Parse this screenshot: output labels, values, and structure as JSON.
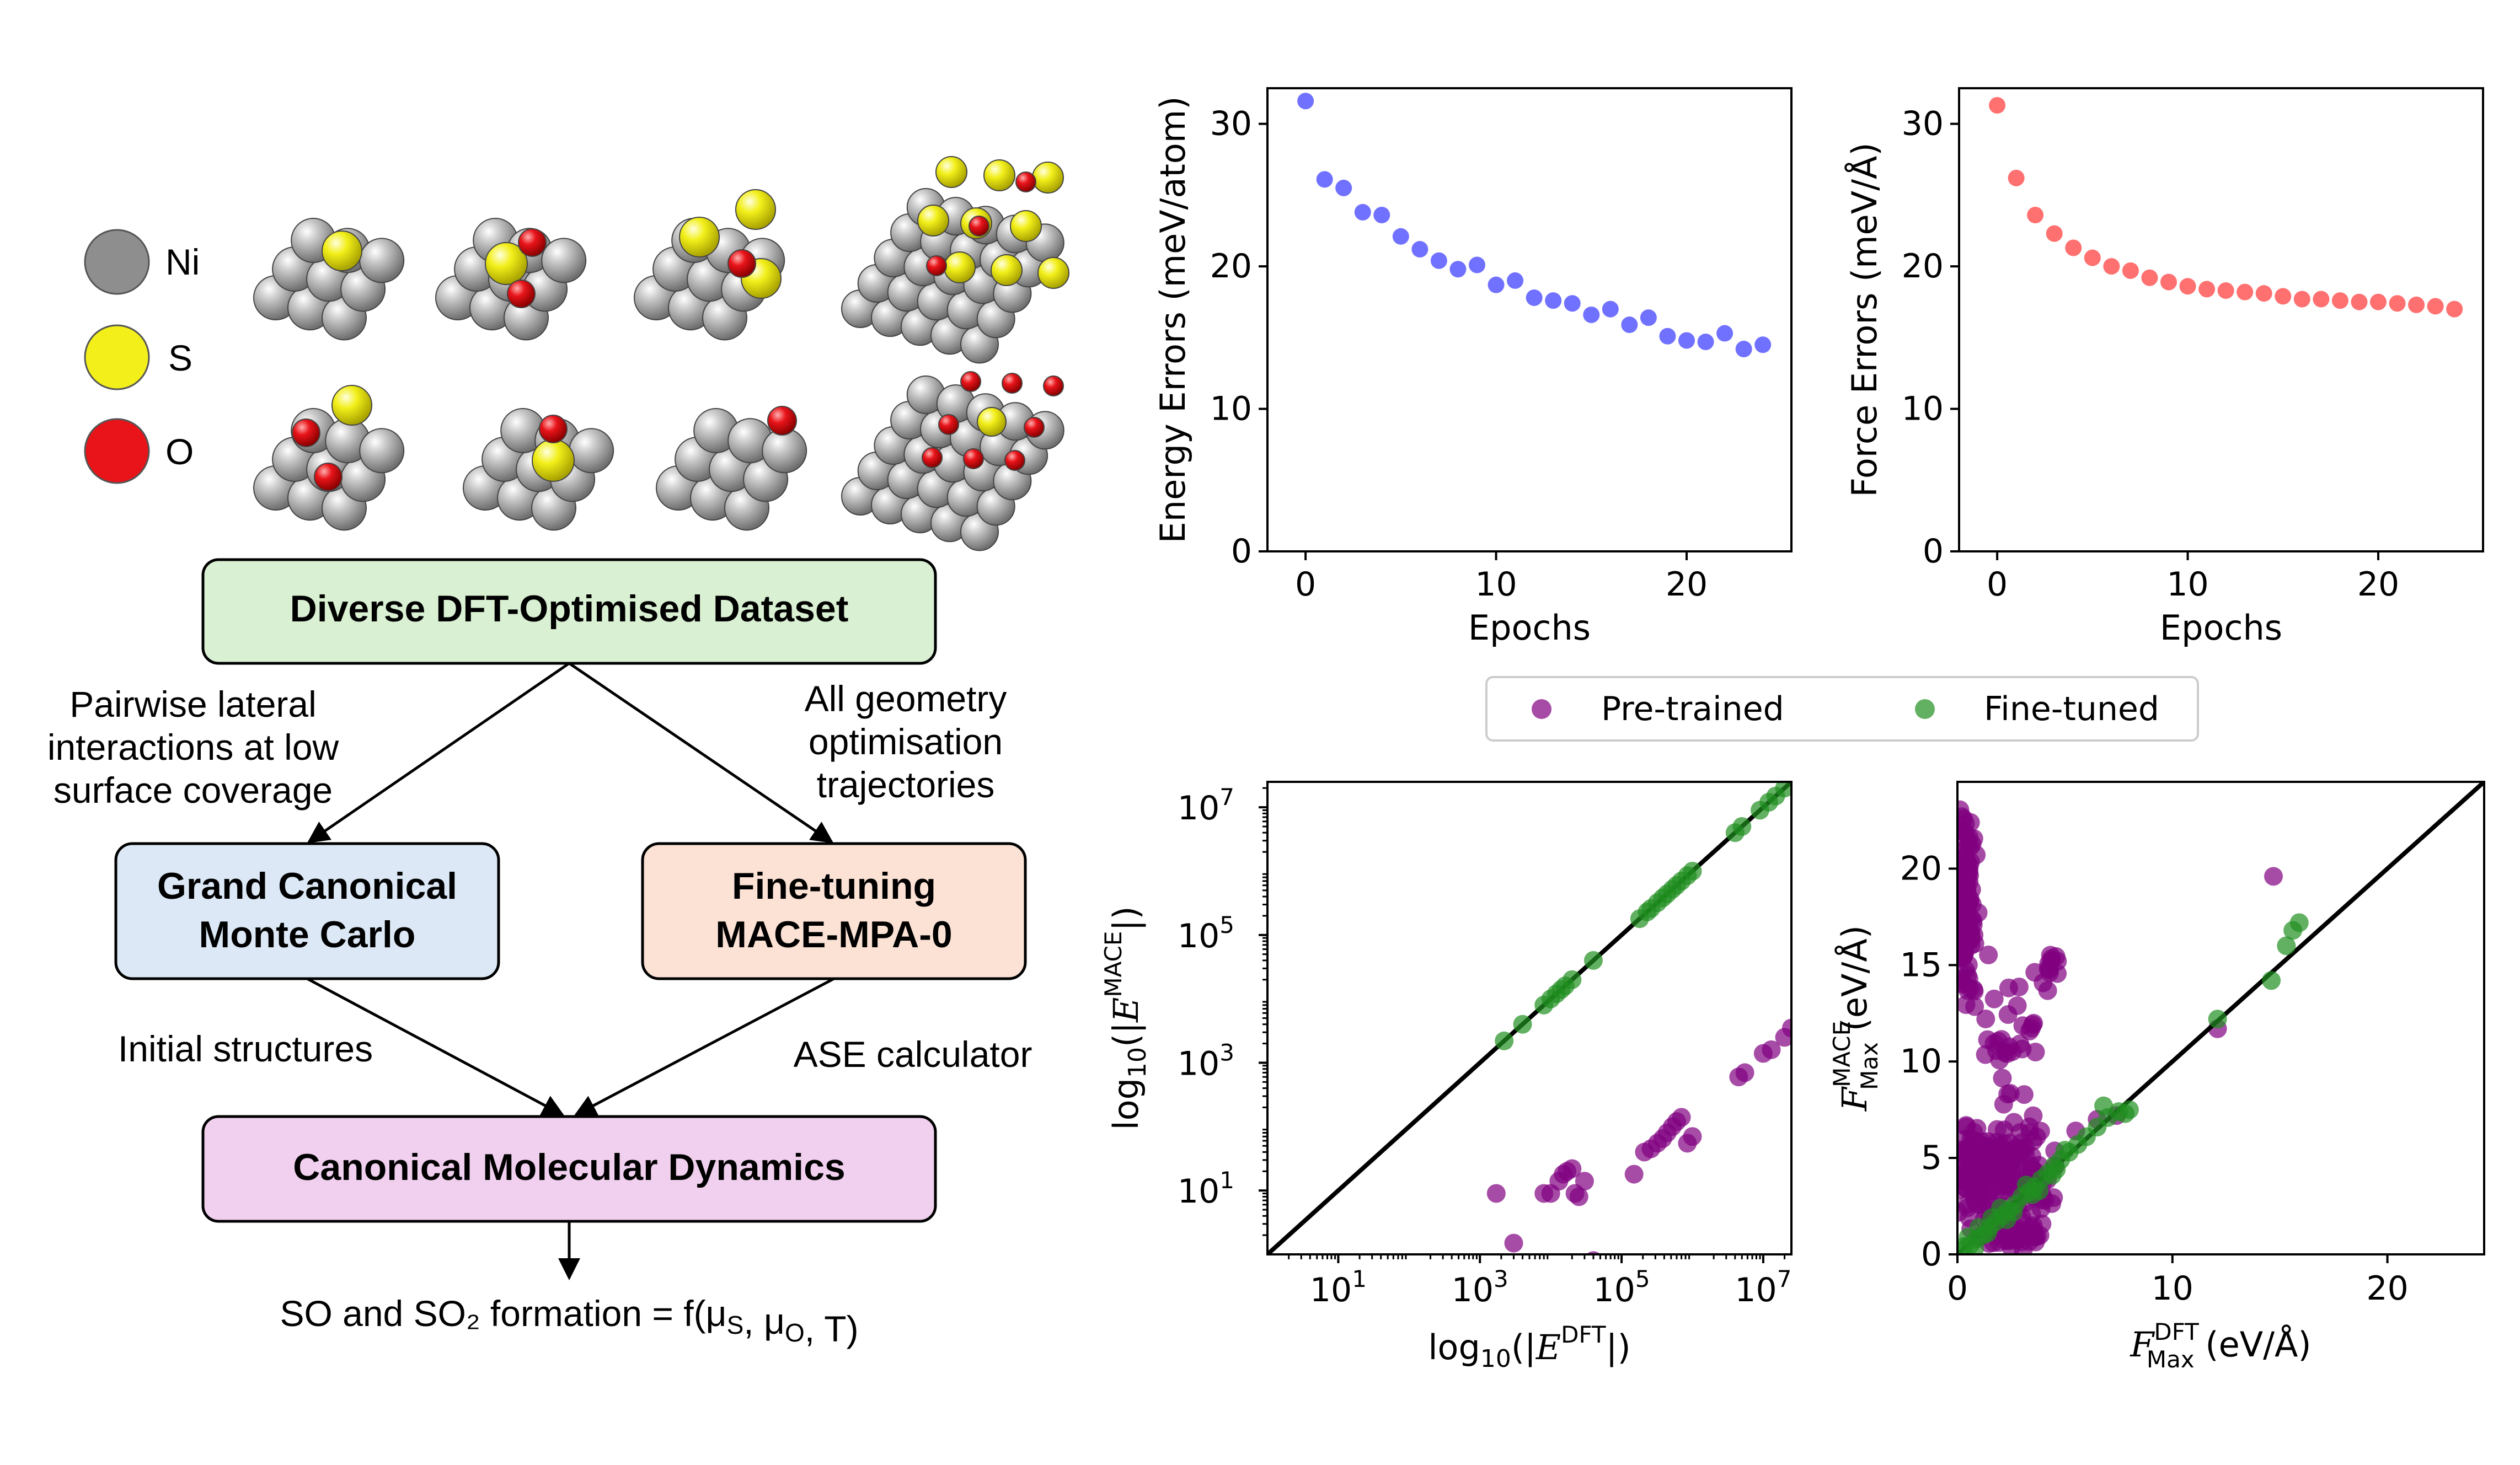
{
  "legend_atoms": [
    {
      "label": "Ni",
      "color": "#8e8e8e"
    },
    {
      "label": "S",
      "color": "#f2ef1a"
    },
    {
      "label": "O",
      "color": "#e8141a"
    }
  ],
  "flow": {
    "dataset_box": "Diverse DFT-Optimised Dataset",
    "gcmc_box_line1": "Grand Canonical",
    "gcmc_box_line2": "Monte Carlo",
    "finetune_box_line1": "Fine-tuning",
    "finetune_box_line2": "MACE-MPA-0",
    "md_box": "Canonical Molecular Dynamics",
    "left_branch_line1": "Pairwise lateral",
    "left_branch_line2": "interactions at low",
    "left_branch_line3": "surface coverage",
    "right_branch_line1": "All geometry",
    "right_branch_line2": "optimisation",
    "right_branch_line3": "trajectories",
    "initial_label": "Initial structures",
    "ase_label": "ASE calculator",
    "formation_text": "SO and SO₂ formation = f(μS, μO, T)"
  },
  "colors": {
    "energy": "#4d4dff",
    "force": "#ff4c4c",
    "pretrained": "#800080",
    "finetuned": "#1f8f1f",
    "box_dataset": "#d9f0d3",
    "box_gcmc": "#dce8f5",
    "box_finetune": "#fbe2d5",
    "box_md": "#f0d0ee"
  },
  "chart_data": [
    {
      "type": "scatter",
      "xlabel": "Epochs",
      "ylabel": "Energy Errors (meV/atom)",
      "xlim": [
        -2,
        25.5
      ],
      "ylim": [
        0,
        32.5
      ],
      "xticks": [
        0,
        10,
        20
      ],
      "yticks": [
        0,
        10,
        20,
        30
      ],
      "x": [
        0,
        1,
        2,
        3,
        4,
        5,
        6,
        7,
        8,
        9,
        10,
        11,
        12,
        13,
        14,
        15,
        16,
        17,
        18,
        19,
        20,
        21,
        22,
        23,
        24
      ],
      "y": [
        31.6,
        26.1,
        25.5,
        23.8,
        23.6,
        22.1,
        21.2,
        20.4,
        19.8,
        20.1,
        18.7,
        19.0,
        17.8,
        17.6,
        17.4,
        16.6,
        17.0,
        15.9,
        16.4,
        15.1,
        14.8,
        14.7,
        15.3,
        14.2,
        14.5
      ]
    },
    {
      "type": "scatter",
      "xlabel": "Epochs",
      "ylabel": "Force Errors (meV/Å)",
      "xlim": [
        -2,
        25.5
      ],
      "ylim": [
        0,
        32.5
      ],
      "xticks": [
        0,
        10,
        20
      ],
      "yticks": [
        0,
        10,
        20,
        30
      ],
      "x": [
        0,
        1,
        2,
        3,
        4,
        5,
        6,
        7,
        8,
        9,
        10,
        11,
        12,
        13,
        14,
        15,
        16,
        17,
        18,
        19,
        20,
        21,
        22,
        23,
        24
      ],
      "y": [
        31.3,
        26.2,
        23.6,
        22.3,
        21.3,
        20.6,
        20.0,
        19.7,
        19.2,
        18.9,
        18.6,
        18.4,
        18.3,
        18.2,
        18.1,
        17.9,
        17.7,
        17.7,
        17.6,
        17.5,
        17.5,
        17.4,
        17.3,
        17.2,
        17.0
      ]
    },
    {
      "type": "scatter",
      "legend": [
        "Pre-trained",
        "Fine-tuned"
      ],
      "legend_position": "top-center",
      "xscale": "log",
      "yscale": "log",
      "xlabel": "log₁₀(|E^DFT|)",
      "ylabel": "log₁₀(|E^MACE|)",
      "xlim": [
        1,
        25000000
      ],
      "ylim": [
        1,
        25000000
      ],
      "xticks": [
        10,
        1000,
        100000,
        10000000
      ],
      "yticks": [
        10,
        1000,
        100000,
        10000000
      ],
      "pretrained": {
        "x": [
          1700,
          8000,
          10000,
          13000,
          15000,
          17000,
          20000,
          22000,
          25000,
          30000,
          150000,
          210000,
          260000,
          320000,
          380000,
          440000,
          520000,
          600000,
          700000,
          850000,
          1000000,
          4500000,
          5500000,
          10000000,
          13000000,
          20000000,
          25000000,
          3000,
          40000
        ],
        "y": [
          9,
          9,
          9,
          14,
          18,
          20,
          22,
          9,
          8,
          14,
          18,
          40,
          45,
          55,
          65,
          80,
          100,
          120,
          140,
          55,
          70,
          600,
          700,
          1400,
          1600,
          2500,
          3500,
          1.5,
          0.8
        ]
      },
      "finetuned": {
        "x": [
          2200,
          4000,
          8000,
          10000,
          12000,
          14000,
          16000,
          20000,
          40000,
          180000,
          230000,
          260000,
          320000,
          380000,
          440000,
          520000,
          600000,
          700000,
          850000,
          1000000,
          4000000,
          5000000,
          9000000,
          12000000,
          15000000,
          20000000
        ],
        "y": [
          2200,
          4000,
          8000,
          10000,
          12000,
          14000,
          16000,
          20000,
          40000,
          180000,
          230000,
          260000,
          320000,
          380000,
          440000,
          520000,
          600000,
          700000,
          850000,
          1000000,
          4000000,
          5000000,
          9000000,
          12000000,
          15000000,
          20000000
        ]
      }
    },
    {
      "type": "scatter",
      "xlabel": "F_Max^DFT (eV/Å)",
      "ylabel": "F_Max^MACE (eV/Å)",
      "xlim": [
        0,
        24.5
      ],
      "ylim": [
        0,
        24.5
      ],
      "xticks": [
        0,
        10,
        20
      ],
      "yticks": [
        0,
        5,
        10,
        15,
        20
      ],
      "pretrained_clusters": [
        {
          "cx": 0.4,
          "cy": 18.0,
          "sx": 0.3,
          "sy": 3.0,
          "n": 120
        },
        {
          "cx": 1.2,
          "cy": 4.5,
          "sx": 1.0,
          "sy": 1.8,
          "n": 140
        },
        {
          "cx": 3.0,
          "cy": 4.2,
          "sx": 1.2,
          "sy": 1.4,
          "n": 70
        },
        {
          "cx": 2.5,
          "cy": 11.0,
          "sx": 1.0,
          "sy": 2.5,
          "n": 35
        },
        {
          "cx": 4.3,
          "cy": 15.0,
          "sx": 0.3,
          "sy": 1.5,
          "n": 12
        },
        {
          "cx": 2.5,
          "cy": 1.0,
          "sx": 1.0,
          "sy": 0.6,
          "n": 50
        }
      ],
      "pretrained_extra": {
        "x": [
          14.7,
          12.1,
          5.5,
          6.5,
          7.4
        ],
        "y": [
          19.6,
          11.7,
          6.4,
          7.0,
          7.2
        ]
      },
      "finetuned_points": {
        "x": [
          0.3,
          0.6,
          0.9,
          1.2,
          1.5,
          1.8,
          2.1,
          2.4,
          2.7,
          3.0,
          3.3,
          3.6,
          3.9,
          4.2,
          4.5,
          4.8,
          5.2,
          5.6,
          6.0,
          6.5,
          7.0,
          7.5,
          8.0,
          0.5,
          1.0,
          1.4,
          2.0,
          2.6,
          3.2,
          3.8,
          4.4,
          5.0,
          12.1,
          14.6,
          15.3,
          15.6,
          15.9,
          6.8,
          7.8,
          0.2,
          0.8,
          1.6,
          2.3,
          3.5,
          4.6
        ],
        "y": [
          0.4,
          0.5,
          0.8,
          1.0,
          1.4,
          1.7,
          2.0,
          2.3,
          2.6,
          3.0,
          3.2,
          3.5,
          3.9,
          4.2,
          4.6,
          4.9,
          5.3,
          5.7,
          6.1,
          6.6,
          7.1,
          7.4,
          7.5,
          0.9,
          1.4,
          1.1,
          2.4,
          2.2,
          3.6,
          3.3,
          4.1,
          5.4,
          12.2,
          14.2,
          16.0,
          16.8,
          17.2,
          7.7,
          7.3,
          0.2,
          0.3,
          1.9,
          1.8,
          3.1,
          4.4
        ]
      }
    }
  ]
}
